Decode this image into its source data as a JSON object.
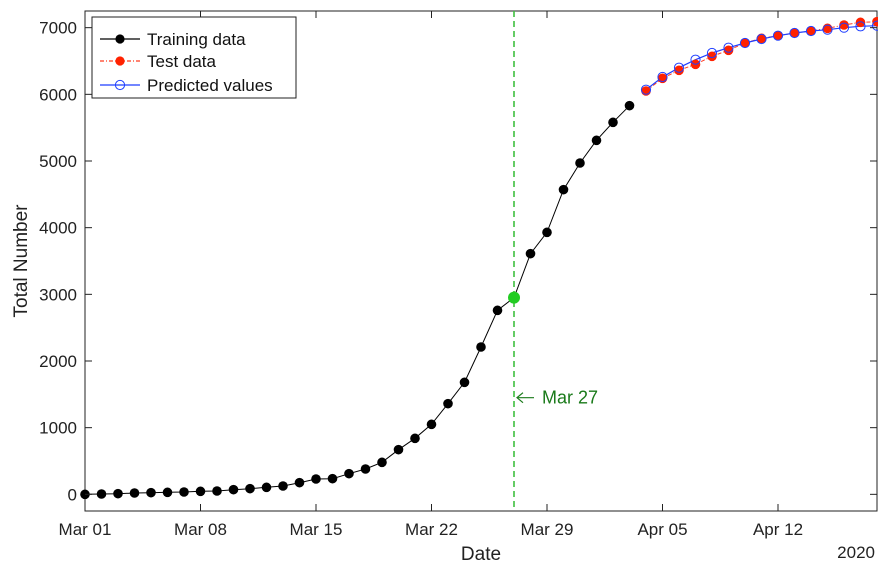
{
  "chart_data": {
    "type": "line",
    "xlabel": "Date",
    "ylabel": "Total Number",
    "x_tick_labels": [
      "Mar 01",
      "Mar 08",
      "Mar 15",
      "Mar 22",
      "Mar 29",
      "Apr 05",
      "Apr 12"
    ],
    "x_tick_dates": [
      "2020-03-01",
      "2020-03-08",
      "2020-03-15",
      "2020-03-22",
      "2020-03-29",
      "2020-04-05",
      "2020-04-12"
    ],
    "x_range": [
      "2020-03-01",
      "2020-04-18"
    ],
    "year_label": "2020",
    "ylim": [
      -250,
      7250
    ],
    "y_ticks": [
      0,
      1000,
      2000,
      3000,
      4000,
      5000,
      6000,
      7000
    ],
    "grid": false,
    "legend_position": "top-left",
    "colors": {
      "training": "#000000",
      "test_line": "#ff3b1f",
      "test_marker": "#ff2200",
      "predicted": "#1f3fff",
      "split_line": "#3fbf3f",
      "split_marker": "#22cc22",
      "annotation": "#1a7a1a"
    },
    "series": [
      {
        "name": "Training data",
        "x": [
          "2020-03-01",
          "2020-03-02",
          "2020-03-03",
          "2020-03-04",
          "2020-03-05",
          "2020-03-06",
          "2020-03-07",
          "2020-03-08",
          "2020-03-09",
          "2020-03-10",
          "2020-03-11",
          "2020-03-12",
          "2020-03-13",
          "2020-03-14",
          "2020-03-15",
          "2020-03-16",
          "2020-03-17",
          "2020-03-18",
          "2020-03-19",
          "2020-03-20",
          "2020-03-21",
          "2020-03-22",
          "2020-03-23",
          "2020-03-24",
          "2020-03-25",
          "2020-03-26",
          "2020-03-27",
          "2020-03-28",
          "2020-03-29",
          "2020-03-30",
          "2020-03-31",
          "2020-04-01",
          "2020-04-02",
          "2020-04-03"
        ],
        "y": [
          0,
          5,
          10,
          20,
          25,
          30,
          35,
          45,
          50,
          70,
          85,
          105,
          125,
          175,
          230,
          235,
          310,
          380,
          480,
          670,
          840,
          1050,
          1360,
          1680,
          2210,
          2760,
          2950,
          3610,
          3930,
          4570,
          4970,
          5310,
          5580,
          5830
        ]
      },
      {
        "name": "Test data",
        "x": [
          "2020-04-04",
          "2020-04-05",
          "2020-04-06",
          "2020-04-07",
          "2020-04-08",
          "2020-04-09",
          "2020-04-10",
          "2020-04-11",
          "2020-04-12",
          "2020-04-13",
          "2020-04-14",
          "2020-04-15",
          "2020-04-16",
          "2020-04-17",
          "2020-04-18"
        ],
        "y": [
          6050,
          6240,
          6360,
          6450,
          6570,
          6660,
          6770,
          6840,
          6880,
          6920,
          6950,
          6990,
          7040,
          7080,
          7090
        ]
      },
      {
        "name": "Predicted values",
        "x": [
          "2020-04-04",
          "2020-04-05",
          "2020-04-06",
          "2020-04-07",
          "2020-04-08",
          "2020-04-09",
          "2020-04-10",
          "2020-04-11",
          "2020-04-12",
          "2020-04-13",
          "2020-04-14",
          "2020-04-15",
          "2020-04-16",
          "2020-04-17",
          "2020-04-18"
        ],
        "y": [
          6070,
          6260,
          6400,
          6520,
          6620,
          6700,
          6770,
          6830,
          6880,
          6920,
          6950,
          6970,
          7000,
          7020,
          7030
        ]
      }
    ],
    "split": {
      "x": "2020-03-27",
      "y": 2950,
      "label": "Mar 27"
    }
  }
}
